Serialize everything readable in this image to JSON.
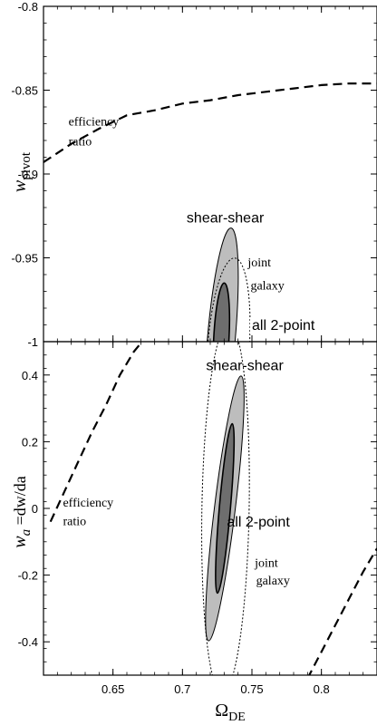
{
  "chart_data": [
    {
      "type": "line",
      "panel": "top",
      "xlabel_main": "",
      "ylabel": {
        "main": "w",
        "sub": "pivot"
      },
      "xlim": [
        0.6,
        0.84
      ],
      "ylim": [
        -1.0,
        -0.8
      ],
      "yticks": [
        -0.8,
        -0.85,
        -0.9,
        -0.95,
        -1
      ],
      "ytick_labels": [
        "-0.8",
        "-0.85",
        "-0.9",
        "-0.95",
        "-1"
      ],
      "xtick_values": [
        0.65,
        0.7,
        0.75,
        0.8
      ],
      "grid": false,
      "efficiency_curve": {
        "x": [
          0.6,
          0.62,
          0.64,
          0.66,
          0.68,
          0.7,
          0.72,
          0.74,
          0.76,
          0.78,
          0.8,
          0.82,
          0.84
        ],
        "y": [
          -0.893,
          -0.882,
          -0.873,
          -0.865,
          -0.862,
          -0.858,
          -0.856,
          -0.853,
          -0.851,
          -0.849,
          -0.847,
          -0.846,
          -0.846
        ]
      },
      "ellipses": [
        {
          "name": "shear-shear-outer",
          "cx": 0.728,
          "cy": -0.998,
          "rx": 0.01,
          "ry": 0.066,
          "tilt": 5,
          "style": "light-fill"
        },
        {
          "name": "all-2point-inner",
          "cx": 0.728,
          "cy": -0.998,
          "rx": 0.0055,
          "ry": 0.033,
          "tilt": 3,
          "style": "dark-fill"
        },
        {
          "name": "joint-galaxy",
          "cx": 0.733,
          "cy": -1.005,
          "rx": 0.015,
          "ry": 0.055,
          "tilt": 4,
          "style": "dotted"
        }
      ],
      "annotations": [
        {
          "text": "efficiency",
          "x": 0.618,
          "y": -0.871
        },
        {
          "text": "ratio",
          "x": 0.618,
          "y": -0.883
        },
        {
          "text": "shear-shear",
          "x": 0.703,
          "y": -0.929
        },
        {
          "text": "joint",
          "x": 0.747,
          "y": -0.955
        },
        {
          "text": "galaxy",
          "x": 0.749,
          "y": -0.969
        },
        {
          "text": "all 2-point",
          "x": 0.75,
          "y": -0.993
        }
      ]
    },
    {
      "type": "line",
      "panel": "bottom",
      "xlabel": {
        "main": "Ω",
        "sub": "DE"
      },
      "ylabel": {
        "main": "w",
        "sub": "a",
        "rest": " =dw/da"
      },
      "xlim": [
        0.6,
        0.84
      ],
      "ylim": [
        -0.5,
        0.5
      ],
      "yticks": [
        0.4,
        0.2,
        0,
        -0.2,
        -0.4
      ],
      "ytick_labels": [
        "0.4",
        "0.2",
        "0",
        "-0.2",
        "-0.4"
      ],
      "xticks": [
        0.65,
        0.7,
        0.75,
        0.8
      ],
      "xtick_labels": [
        "0.65",
        "0.7",
        "0.75",
        "0.8"
      ],
      "grid": false,
      "efficiency_curve_left": {
        "x": [
          0.605,
          0.615,
          0.625,
          0.635,
          0.645,
          0.655,
          0.665,
          0.675
        ],
        "y": [
          -0.04,
          0.05,
          0.14,
          0.23,
          0.31,
          0.4,
          0.47,
          0.52
        ]
      },
      "efficiency_curve_right": {
        "x": [
          0.79,
          0.8,
          0.81,
          0.82,
          0.83,
          0.84
        ],
        "y": [
          -0.51,
          -0.43,
          -0.35,
          -0.27,
          -0.19,
          -0.12
        ]
      },
      "ellipses": [
        {
          "name": "joint-galaxy",
          "cx": 0.731,
          "cy": 0.0,
          "rx": 0.017,
          "ry": 0.555,
          "tilt": 1,
          "style": "dotted"
        },
        {
          "name": "shear-shear-outer",
          "cx": 0.7305,
          "cy": 0.0,
          "rx": 0.0075,
          "ry": 0.4,
          "tilt": 7,
          "style": "light-fill"
        },
        {
          "name": "all-2point-inner",
          "cx": 0.7305,
          "cy": 0.0,
          "rx": 0.004,
          "ry": 0.255,
          "tilt": 5,
          "style": "dark-fill"
        }
      ],
      "annotations": [
        {
          "text": "shear-shear",
          "x": 0.717,
          "y": 0.415
        },
        {
          "text": "efficiency",
          "x": 0.614,
          "y": 0.005
        },
        {
          "text": "ratio",
          "x": 0.614,
          "y": -0.05
        },
        {
          "text": "all 2-point",
          "x": 0.732,
          "y": -0.055
        },
        {
          "text": "joint",
          "x": 0.752,
          "y": -0.175
        },
        {
          "text": "galaxy",
          "x": 0.753,
          "y": -0.228
        }
      ]
    }
  ]
}
